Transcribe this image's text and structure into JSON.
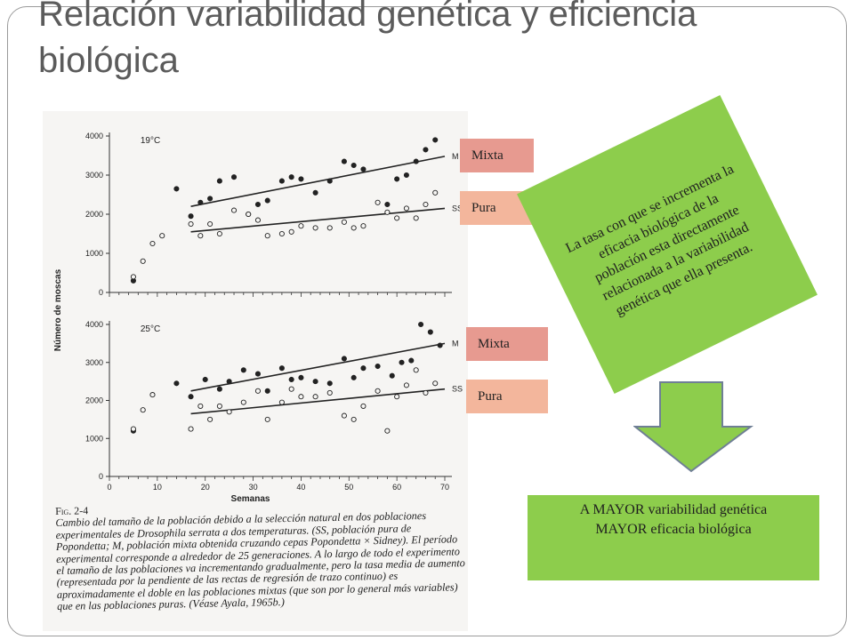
{
  "slide": {
    "title": "Relación variabilidad genética y eficiencia biológica"
  },
  "tags": [
    {
      "label": "Mixta"
    },
    {
      "label": "Pura"
    },
    {
      "label": "Mixta"
    },
    {
      "label": "Pura"
    }
  ],
  "note": {
    "text": "La tasa con que se incrementa la eficacia biológica de la población esta directamente relacionada a la variabilidad genética que ella presenta."
  },
  "result": {
    "line1": "A MAYOR variabilidad genética",
    "line2": "MAYOR eficacia biológica"
  },
  "figure": {
    "fig_label": "Fig. 2-4",
    "caption": "Cambio del tamaño de la población debido a la selección natural en dos poblaciones experimentales de Drosophila serrata a dos temperaturas. (SS, población pura de Popondetta; M, población mixta obtenida cruzando cepas Popondetta × Sidney). El período experimental corresponde a alrededor de 25 generaciones. A lo largo de todo el experimento el tamaño de las poblaciones va incrementando gradualmente, pero la tasa media de aumento (representada por la pendiente de las rectas de regresión de trazo continuo) es aproximadamente el doble en las poblaciones mixtas (que son por lo general más variables) que en las poblaciones puras. (Véase Ayala, 1965b.)"
  },
  "chart_data": [
    {
      "type": "scatter",
      "title": "19°C",
      "xlabel": "",
      "ylabel": "Número de moscas",
      "xlim": [
        0,
        70
      ],
      "ylim": [
        0,
        4000
      ],
      "yticks": [
        0,
        1000,
        2000,
        3000,
        4000
      ],
      "series": [
        {
          "name": "M",
          "marker": "filled",
          "x": [
            5,
            14,
            17,
            19,
            21,
            23,
            26,
            29,
            31,
            33,
            36,
            38,
            40,
            43,
            46,
            49,
            51,
            53,
            58,
            60,
            62,
            64,
            66,
            68
          ],
          "y": [
            300,
            2650,
            1950,
            2300,
            2400,
            2850,
            2950,
            2000,
            2250,
            2350,
            2850,
            2950,
            2900,
            2550,
            2850,
            3350,
            3250,
            3150,
            2250,
            2900,
            3000,
            3350,
            3650,
            3900
          ],
          "regression": [
            [
              17,
              2200
            ],
            [
              70,
              3480
            ]
          ]
        },
        {
          "name": "SS",
          "marker": "open",
          "x": [
            5,
            7,
            9,
            11,
            17,
            19,
            21,
            23,
            26,
            29,
            31,
            33,
            36,
            38,
            40,
            43,
            46,
            49,
            51,
            53,
            56,
            58,
            60,
            62,
            64,
            66,
            68
          ],
          "y": [
            400,
            800,
            1250,
            1450,
            1750,
            1450,
            1750,
            1500,
            2100,
            2000,
            1850,
            1450,
            1500,
            1550,
            1700,
            1650,
            1650,
            1800,
            1650,
            1700,
            2300,
            2050,
            1900,
            2150,
            1900,
            2250,
            2550
          ],
          "regression": [
            [
              17,
              1550
            ],
            [
              70,
              2150
            ]
          ]
        }
      ]
    },
    {
      "type": "scatter",
      "title": "25°C",
      "xlabel": "Semanas",
      "ylabel": "Número de moscas",
      "xlim": [
        0,
        70
      ],
      "xticks": [
        0,
        10,
        20,
        30,
        40,
        50,
        60,
        70
      ],
      "ylim": [
        0,
        4000
      ],
      "yticks": [
        0,
        1000,
        2000,
        3000,
        4000
      ],
      "series": [
        {
          "name": "M",
          "marker": "filled",
          "x": [
            5,
            14,
            17,
            20,
            23,
            25,
            28,
            31,
            33,
            36,
            38,
            40,
            43,
            46,
            49,
            51,
            53,
            56,
            59,
            61,
            63,
            65,
            67,
            69
          ],
          "y": [
            1200,
            2450,
            2100,
            2550,
            2300,
            2500,
            2800,
            2700,
            2250,
            2850,
            2550,
            2600,
            2500,
            2450,
            3100,
            2600,
            2850,
            2900,
            2650,
            3000,
            3050,
            4000,
            3800,
            3450
          ],
          "regression": [
            [
              17,
              2250
            ],
            [
              70,
              3500
            ]
          ]
        },
        {
          "name": "SS",
          "marker": "open",
          "x": [
            5,
            7,
            9,
            17,
            19,
            21,
            23,
            25,
            28,
            31,
            33,
            36,
            38,
            40,
            43,
            46,
            49,
            51,
            53,
            56,
            58,
            60,
            62,
            64,
            66,
            68
          ],
          "y": [
            1250,
            1750,
            2150,
            1250,
            1850,
            1500,
            1850,
            1700,
            1950,
            2250,
            1500,
            1950,
            2300,
            2100,
            2100,
            2200,
            1600,
            1500,
            1850,
            2250,
            1200,
            2100,
            2400,
            2800,
            2200,
            2450
          ],
          "regression": [
            [
              17,
              1650
            ],
            [
              70,
              2300
            ]
          ]
        }
      ]
    }
  ]
}
